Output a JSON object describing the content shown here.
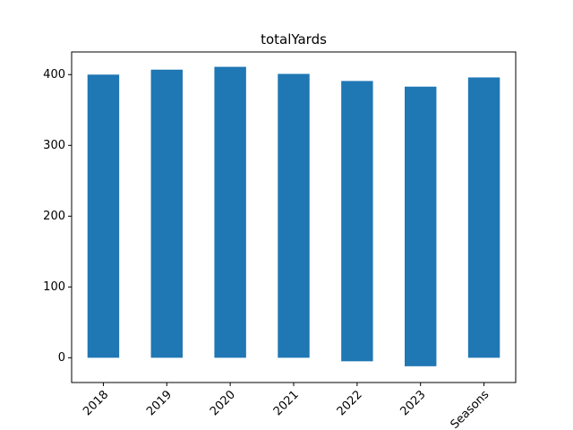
{
  "chart_data": {
    "type": "bar",
    "title": "totalYards",
    "xlabel": "",
    "ylabel": "",
    "categories": [
      "2018",
      "2019",
      "2020",
      "2021",
      "2022",
      "2023",
      "Seasons"
    ],
    "values": [
      400,
      407,
      411,
      401,
      391,
      383,
      396
    ],
    "bar_bottoms": [
      0,
      0,
      0,
      0,
      -5,
      -12,
      0
    ],
    "ylim": [
      -35,
      432
    ],
    "yticks": [
      0,
      100,
      200,
      300,
      400
    ],
    "bar_color": "#1f77b4",
    "grid": false,
    "legend": "none",
    "xtick_rotation": -45
  }
}
